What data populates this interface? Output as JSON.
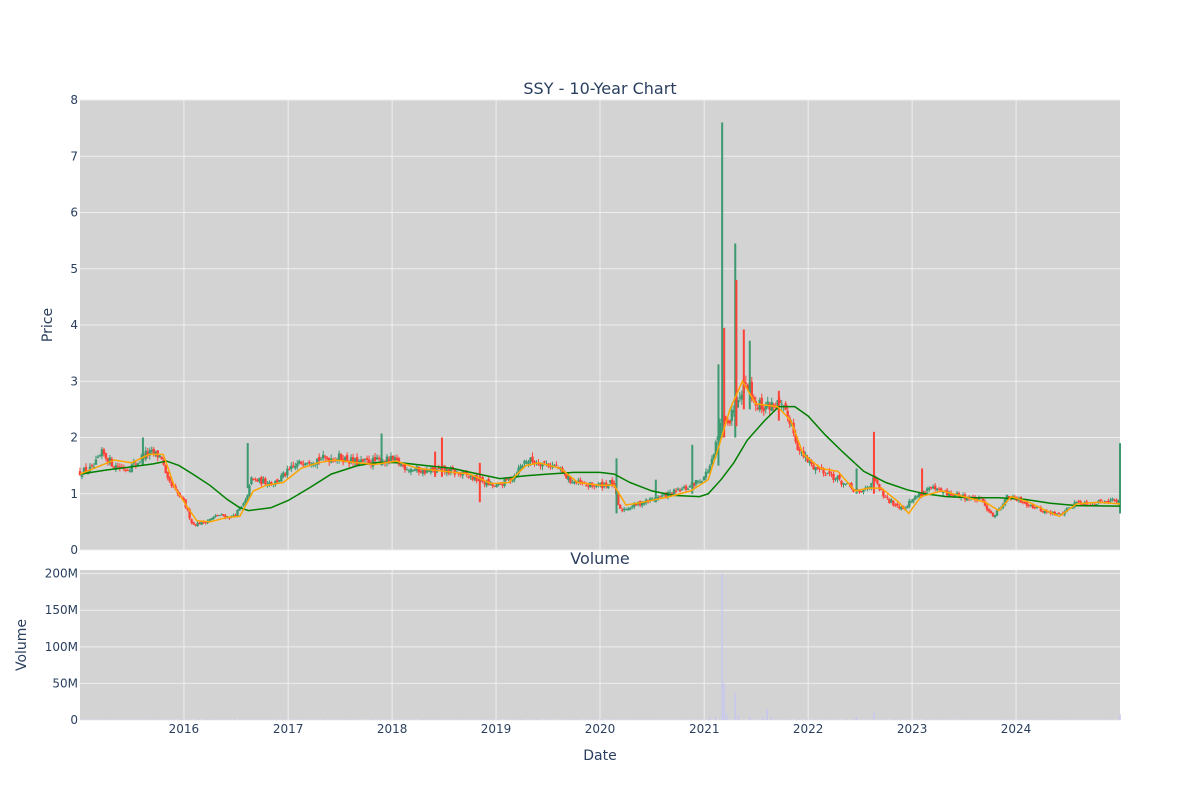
{
  "chart_data": {
    "type": "candlestick",
    "title": "SSY - 10-Year Chart",
    "xlabel": "Date",
    "x_range": [
      "2015-01-01",
      "2024-12-31"
    ],
    "x_ticks": [
      "2016",
      "2017",
      "2018",
      "2019",
      "2020",
      "2021",
      "2022",
      "2023",
      "2024"
    ],
    "colors": {
      "plot_bg": "#d3d3d3",
      "grid": "#eeeeee",
      "up": "#3d9970",
      "down": "#ff4136",
      "ma_short": "#ffa500",
      "ma_long": "#008000",
      "volume": "#c8c8ee",
      "text": "#2a3f5f"
    },
    "price": {
      "ylabel": "Price",
      "ylim": [
        0,
        8
      ],
      "y_ticks": [
        0,
        1,
        2,
        3,
        4,
        5,
        6,
        7,
        8
      ],
      "close_path": [
        [
          "2015-01-01",
          1.38
        ],
        [
          "2015-02-15",
          1.45
        ],
        [
          "2015-03-20",
          1.72
        ],
        [
          "2015-05-01",
          1.5
        ],
        [
          "2015-06-15",
          1.45
        ],
        [
          "2015-07-20",
          1.55
        ],
        [
          "2015-08-15",
          1.7
        ],
        [
          "2015-09-15",
          1.72
        ],
        [
          "2015-10-15",
          1.65
        ],
        [
          "2015-11-01",
          1.25
        ],
        [
          "2015-12-01",
          1.05
        ],
        [
          "2016-01-01",
          0.85
        ],
        [
          "2016-02-01",
          0.45
        ],
        [
          "2016-03-15",
          0.5
        ],
        [
          "2016-05-01",
          0.62
        ],
        [
          "2016-06-15",
          0.58
        ],
        [
          "2016-07-15",
          0.72
        ],
        [
          "2016-08-10",
          0.9
        ],
        [
          "2016-08-20",
          1.25
        ],
        [
          "2016-10-01",
          1.22
        ],
        [
          "2016-11-15",
          1.2
        ],
        [
          "2017-01-15",
          1.45
        ],
        [
          "2017-03-01",
          1.6
        ],
        [
          "2017-05-01",
          1.62
        ],
        [
          "2017-07-01",
          1.65
        ],
        [
          "2017-09-01",
          1.55
        ],
        [
          "2017-11-01",
          1.58
        ],
        [
          "2018-01-01",
          1.6
        ],
        [
          "2018-03-01",
          1.45
        ],
        [
          "2018-05-01",
          1.4
        ],
        [
          "2018-07-01",
          1.42
        ],
        [
          "2018-09-01",
          1.35
        ],
        [
          "2018-11-01",
          1.25
        ],
        [
          "2019-01-01",
          1.12
        ],
        [
          "2019-03-01",
          1.3
        ],
        [
          "2019-04-15",
          1.6
        ],
        [
          "2019-06-15",
          1.55
        ],
        [
          "2019-08-01",
          1.48
        ],
        [
          "2019-09-15",
          1.25
        ],
        [
          "2019-11-01",
          1.15
        ],
        [
          "2020-01-01",
          1.15
        ],
        [
          "2020-02-15",
          1.2
        ],
        [
          "2020-03-10",
          0.7
        ],
        [
          "2020-05-01",
          0.8
        ],
        [
          "2020-07-01",
          0.9
        ],
        [
          "2020-09-01",
          1.0
        ],
        [
          "2020-11-01",
          1.1
        ],
        [
          "2021-01-01",
          1.3
        ],
        [
          "2021-02-01",
          1.6
        ],
        [
          "2021-02-25",
          2.2
        ],
        [
          "2021-03-15",
          2.4
        ],
        [
          "2021-04-01",
          2.3
        ],
        [
          "2021-05-01",
          2.8
        ],
        [
          "2021-06-01",
          3.0
        ],
        [
          "2021-07-01",
          2.6
        ],
        [
          "2021-08-01",
          2.55
        ],
        [
          "2021-09-15",
          2.6
        ],
        [
          "2021-11-01",
          2.3
        ],
        [
          "2021-12-01",
          1.75
        ],
        [
          "2022-01-15",
          1.5
        ],
        [
          "2022-03-01",
          1.4
        ],
        [
          "2022-05-01",
          1.2
        ],
        [
          "2022-07-01",
          1.0
        ],
        [
          "2022-08-20",
          1.25
        ],
        [
          "2022-10-01",
          0.9
        ],
        [
          "2022-12-01",
          0.75
        ],
        [
          "2023-01-15",
          0.95
        ],
        [
          "2023-03-01",
          1.1
        ],
        [
          "2023-05-01",
          1.0
        ],
        [
          "2023-07-01",
          0.95
        ],
        [
          "2023-09-01",
          0.88
        ],
        [
          "2023-10-15",
          0.6
        ],
        [
          "2023-12-01",
          0.95
        ],
        [
          "2024-02-01",
          0.85
        ],
        [
          "2024-04-01",
          0.7
        ],
        [
          "2024-06-01",
          0.62
        ],
        [
          "2024-08-01",
          0.85
        ],
        [
          "2024-10-01",
          0.82
        ],
        [
          "2024-11-15",
          0.9
        ],
        [
          "2024-12-31",
          0.85
        ]
      ],
      "spikes": [
        {
          "date": "2015-08-10",
          "high": 2.0,
          "low": 1.5,
          "color": "up"
        },
        {
          "date": "2016-08-12",
          "high": 1.9,
          "low": 1.1,
          "color": "up"
        },
        {
          "date": "2017-11-25",
          "high": 2.07,
          "low": 1.5,
          "color": "up"
        },
        {
          "date": "2018-06-25",
          "high": 2.0,
          "low": 1.3,
          "color": "down"
        },
        {
          "date": "2018-06-01",
          "high": 1.75,
          "low": 1.3,
          "color": "down"
        },
        {
          "date": "2018-11-05",
          "high": 1.55,
          "low": 0.85,
          "color": "down"
        },
        {
          "date": "2020-02-28",
          "high": 1.63,
          "low": 0.65,
          "color": "up"
        },
        {
          "date": "2020-07-15",
          "high": 1.25,
          "low": 0.85,
          "color": "up"
        },
        {
          "date": "2020-11-20",
          "high": 1.87,
          "low": 1.0,
          "color": "up"
        },
        {
          "date": "2021-02-20",
          "high": 3.3,
          "low": 1.5,
          "color": "up"
        },
        {
          "date": "2021-03-12",
          "high": 3.95,
          "low": 2.0,
          "color": "down"
        },
        {
          "date": "2021-03-05",
          "high": 7.6,
          "low": 2.0,
          "color": "up"
        },
        {
          "date": "2021-04-20",
          "high": 5.45,
          "low": 2.0,
          "color": "up"
        },
        {
          "date": "2021-04-24",
          "high": 4.8,
          "low": 2.2,
          "color": "down"
        },
        {
          "date": "2021-05-20",
          "high": 3.92,
          "low": 2.5,
          "color": "down"
        },
        {
          "date": "2021-06-10",
          "high": 3.72,
          "low": 2.5,
          "color": "up"
        },
        {
          "date": "2021-09-20",
          "high": 2.83,
          "low": 2.3,
          "color": "down"
        },
        {
          "date": "2022-06-20",
          "high": 1.45,
          "low": 1.0,
          "color": "up"
        },
        {
          "date": "2022-08-20",
          "high": 2.1,
          "low": 1.0,
          "color": "down"
        },
        {
          "date": "2023-02-05",
          "high": 1.45,
          "low": 0.95,
          "color": "down"
        },
        {
          "date": "2024-12-31",
          "high": 1.9,
          "low": 0.65,
          "color": "up"
        }
      ],
      "ma_short_path": [
        [
          "2015-01-01",
          1.35
        ],
        [
          "2015-03-15",
          1.5
        ],
        [
          "2015-05-01",
          1.6
        ],
        [
          "2015-07-01",
          1.55
        ],
        [
          "2015-09-01",
          1.7
        ],
        [
          "2015-10-20",
          1.7
        ],
        [
          "2015-12-01",
          1.1
        ],
        [
          "2016-01-15",
          0.75
        ],
        [
          "2016-02-15",
          0.52
        ],
        [
          "2016-04-01",
          0.5
        ],
        [
          "2016-06-01",
          0.58
        ],
        [
          "2016-07-15",
          0.6
        ],
        [
          "2016-09-01",
          1.05
        ],
        [
          "2016-10-15",
          1.15
        ],
        [
          "2016-12-15",
          1.2
        ],
        [
          "2017-02-15",
          1.45
        ],
        [
          "2017-04-15",
          1.55
        ],
        [
          "2017-06-15",
          1.6
        ],
        [
          "2017-09-01",
          1.55
        ],
        [
          "2017-11-01",
          1.52
        ],
        [
          "2018-01-15",
          1.58
        ],
        [
          "2018-04-01",
          1.45
        ],
        [
          "2018-07-01",
          1.4
        ],
        [
          "2018-10-01",
          1.35
        ],
        [
          "2018-12-15",
          1.18
        ],
        [
          "2019-02-15",
          1.2
        ],
        [
          "2019-04-15",
          1.5
        ],
        [
          "2019-06-01",
          1.55
        ],
        [
          "2019-08-15",
          1.45
        ],
        [
          "2019-10-15",
          1.2
        ],
        [
          "2020-01-01",
          1.15
        ],
        [
          "2020-02-20",
          1.15
        ],
        [
          "2020-04-01",
          0.8
        ],
        [
          "2020-06-01",
          0.85
        ],
        [
          "2020-09-01",
          0.95
        ],
        [
          "2020-11-15",
          1.05
        ],
        [
          "2021-01-15",
          1.25
        ],
        [
          "2021-02-25",
          1.9
        ],
        [
          "2021-04-01",
          2.5
        ],
        [
          "2021-05-15",
          3.0
        ],
        [
          "2021-07-01",
          2.6
        ],
        [
          "2021-09-15",
          2.55
        ],
        [
          "2021-11-01",
          2.3
        ],
        [
          "2021-12-15",
          1.7
        ],
        [
          "2022-02-15",
          1.45
        ],
        [
          "2022-04-15",
          1.4
        ],
        [
          "2022-06-15",
          1.05
        ],
        [
          "2022-08-01",
          1.1
        ],
        [
          "2022-09-15",
          1.1
        ],
        [
          "2022-11-15",
          0.85
        ],
        [
          "2022-12-20",
          0.65
        ],
        [
          "2023-02-01",
          0.95
        ],
        [
          "2023-04-15",
          1.05
        ],
        [
          "2023-07-01",
          0.95
        ],
        [
          "2023-09-15",
          0.85
        ],
        [
          "2023-11-01",
          0.7
        ],
        [
          "2023-12-15",
          0.95
        ],
        [
          "2024-02-15",
          0.85
        ],
        [
          "2024-04-15",
          0.7
        ],
        [
          "2024-06-01",
          0.6
        ],
        [
          "2024-08-01",
          0.82
        ],
        [
          "2024-10-15",
          0.85
        ],
        [
          "2024-12-31",
          0.82
        ]
      ],
      "ma_long_path": [
        [
          "2015-01-01",
          1.35
        ],
        [
          "2015-04-01",
          1.42
        ],
        [
          "2015-07-01",
          1.48
        ],
        [
          "2015-09-15",
          1.53
        ],
        [
          "2015-11-01",
          1.58
        ],
        [
          "2015-12-15",
          1.5
        ],
        [
          "2016-02-01",
          1.35
        ],
        [
          "2016-04-01",
          1.15
        ],
        [
          "2016-06-01",
          0.9
        ],
        [
          "2016-07-15",
          0.75
        ],
        [
          "2016-08-15",
          0.7
        ],
        [
          "2016-11-01",
          0.75
        ],
        [
          "2017-01-01",
          0.88
        ],
        [
          "2017-03-15",
          1.1
        ],
        [
          "2017-06-01",
          1.35
        ],
        [
          "2017-09-01",
          1.5
        ],
        [
          "2017-11-15",
          1.56
        ],
        [
          "2018-02-01",
          1.55
        ],
        [
          "2018-05-01",
          1.5
        ],
        [
          "2018-08-01",
          1.45
        ],
        [
          "2018-11-01",
          1.35
        ],
        [
          "2019-01-15",
          1.27
        ],
        [
          "2019-04-15",
          1.32
        ],
        [
          "2019-07-01",
          1.35
        ],
        [
          "2019-10-01",
          1.38
        ],
        [
          "2020-01-01",
          1.38
        ],
        [
          "2020-02-20",
          1.35
        ],
        [
          "2020-04-15",
          1.2
        ],
        [
          "2020-07-01",
          1.05
        ],
        [
          "2020-09-15",
          0.97
        ],
        [
          "2020-12-15",
          0.95
        ],
        [
          "2021-01-15",
          1.0
        ],
        [
          "2021-03-01",
          1.25
        ],
        [
          "2021-04-15",
          1.55
        ],
        [
          "2021-06-01",
          1.95
        ],
        [
          "2021-08-01",
          2.3
        ],
        [
          "2021-09-20",
          2.55
        ],
        [
          "2021-11-15",
          2.55
        ],
        [
          "2022-01-01",
          2.38
        ],
        [
          "2022-03-01",
          2.05
        ],
        [
          "2022-05-01",
          1.75
        ],
        [
          "2022-07-15",
          1.4
        ],
        [
          "2022-10-01",
          1.2
        ],
        [
          "2022-12-15",
          1.07
        ],
        [
          "2023-02-15",
          1.0
        ],
        [
          "2023-05-01",
          0.95
        ],
        [
          "2023-08-01",
          0.93
        ],
        [
          "2023-11-01",
          0.93
        ],
        [
          "2024-02-01",
          0.9
        ],
        [
          "2024-05-01",
          0.83
        ],
        [
          "2024-08-01",
          0.79
        ],
        [
          "2024-12-31",
          0.78
        ]
      ]
    },
    "volume": {
      "title": "Volume",
      "ylabel": "Volume",
      "ylim": [
        0,
        205
      ],
      "y_ticks": [
        0,
        50,
        100,
        150,
        200
      ],
      "y_tick_labels": [
        "0",
        "50M",
        "100M",
        "150M",
        "200M"
      ],
      "unit": "M",
      "spikes": [
        {
          "date": "2021-03-05",
          "value": 200
        },
        {
          "date": "2021-03-12",
          "value": 50
        },
        {
          "date": "2021-03-20",
          "value": 8
        },
        {
          "date": "2021-04-20",
          "value": 37
        },
        {
          "date": "2021-05-01",
          "value": 6
        },
        {
          "date": "2021-06-10",
          "value": 5
        },
        {
          "date": "2021-07-25",
          "value": 4
        },
        {
          "date": "2021-08-10",
          "value": 15
        },
        {
          "date": "2021-08-25",
          "value": 4
        },
        {
          "date": "2021-01-20",
          "value": 4
        },
        {
          "date": "2021-02-10",
          "value": 5
        },
        {
          "date": "2022-06-20",
          "value": 4
        },
        {
          "date": "2022-08-20",
          "value": 10
        },
        {
          "date": "2024-12-31",
          "value": 8
        }
      ]
    }
  }
}
